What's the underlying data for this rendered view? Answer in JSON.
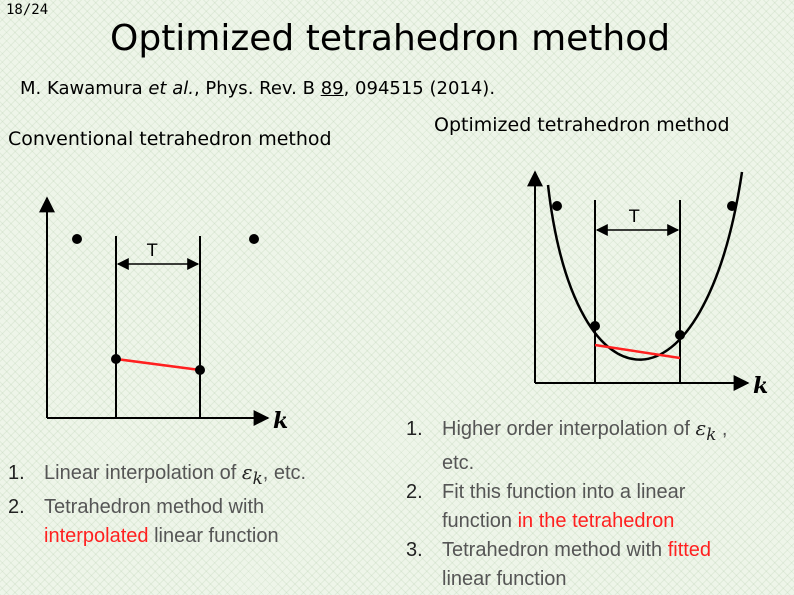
{
  "slide": {
    "page_number": "18/24",
    "title": "Optimized tetrahedron method",
    "citation": {
      "authors": "M. Kawamura ",
      "etal": "et al.",
      "journal": ", Phys. Rev. B ",
      "volume": "89",
      "rest": ", 094515 (2014)."
    }
  },
  "left_panel": {
    "heading": "Conventional tetrahedron method",
    "tetra_label": "T",
    "axis_label": "k",
    "list": [
      {
        "num": "1.",
        "text_before": "Linear interpolation of ",
        "symbol": "ε",
        "subscript": "k",
        "text_after": ", etc."
      },
      {
        "num": "2.",
        "line1": "Tetrahedron method with",
        "red": "interpolated",
        "line2_rest": " linear function"
      }
    ]
  },
  "right_panel": {
    "heading": "Optimized tetrahedron method",
    "tetra_label": "T",
    "axis_label": "k",
    "list": [
      {
        "num": "1.",
        "text_before": "Higher order interpolation of ",
        "symbol": "ε",
        "subscript": "k",
        "text_after": " ,",
        "line2": "etc."
      },
      {
        "num": "2.",
        "line1": "Fit this function into a linear",
        "line2_before": "function ",
        "red": "in the tetrahedron"
      },
      {
        "num": "3.",
        "line1_before": "Tetrahedron method with ",
        "red": "fitted",
        "line2": "linear function"
      }
    ]
  }
}
